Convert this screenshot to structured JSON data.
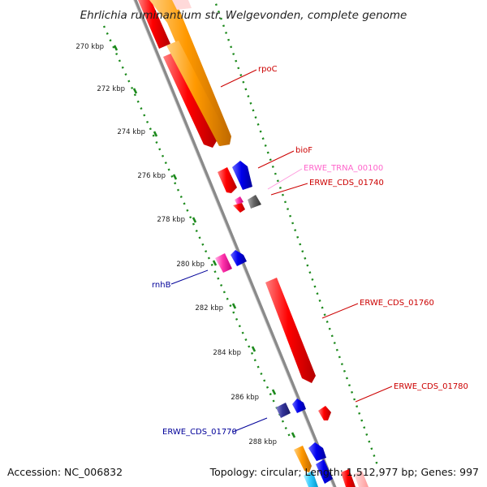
{
  "title": "Ehrlichia ruminantium str. Welgevonden, complete genome",
  "accession": "Accession: NC_006832",
  "summary": "Topology: circular; Length: 1,512,977 bp; Genes: 997",
  "colors": {
    "backbone": "#8a8a8a",
    "tick": "#1d8a1d",
    "forward_cds": "#ff0000",
    "reverse_cds": "#ff0000",
    "trna": "#ff66cc",
    "orange": "#ff9900",
    "blue": "#0000ee",
    "gray": "#666666",
    "navy": "#333399"
  },
  "scale_labels": [
    {
      "text": "270 kbp",
      "kbp": 270
    },
    {
      "text": "272 kbp",
      "kbp": 272
    },
    {
      "text": "274 kbp",
      "kbp": 274
    },
    {
      "text": "276 kbp",
      "kbp": 276
    },
    {
      "text": "278 kbp",
      "kbp": 278
    },
    {
      "text": "280 kbp",
      "kbp": 280
    },
    {
      "text": "282 kbp",
      "kbp": 282
    },
    {
      "text": "284 kbp",
      "kbp": 284
    },
    {
      "text": "286 kbp",
      "kbp": 286
    },
    {
      "text": "288 kbp",
      "kbp": 288
    }
  ],
  "gene_labels": [
    {
      "text": "rpoC",
      "color": "#cc0000"
    },
    {
      "text": "bioF",
      "color": "#cc0000"
    },
    {
      "text": "ERWE_TRNA_00100",
      "color": "#ff66cc"
    },
    {
      "text": "ERWE_CDS_01740",
      "color": "#cc0000"
    },
    {
      "text": "rnhB",
      "color": "#000099"
    },
    {
      "text": "ERWE_CDS_01760",
      "color": "#cc0000"
    },
    {
      "text": "ERWE_CDS_01780",
      "color": "#cc0000"
    },
    {
      "text": "ERWE_CDS_01770",
      "color": "#000099"
    }
  ]
}
